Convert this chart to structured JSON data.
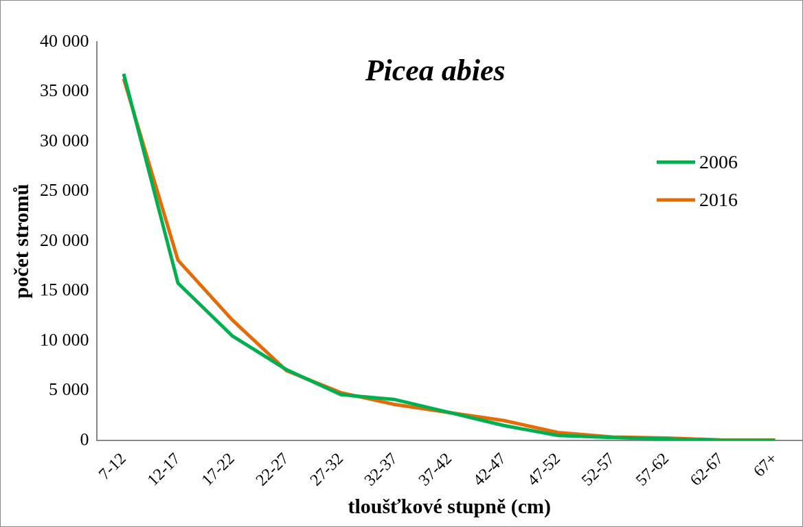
{
  "chart_data": {
    "type": "line",
    "title": "Picea abies",
    "xlabel": "tloušťkové stupně (cm)",
    "ylabel": "počet stromů",
    "categories": [
      "7-12",
      "12-17",
      "17-22",
      "22-27",
      "27-32",
      "32-37",
      "37-42",
      "42-47",
      "47-52",
      "52-57",
      "57-62",
      "62-67",
      "67+"
    ],
    "series": [
      {
        "name": "2006",
        "color": "#00b050",
        "values": [
          36800,
          15800,
          10500,
          7100,
          4600,
          4100,
          2800,
          1500,
          500,
          300,
          150,
          0,
          0
        ]
      },
      {
        "name": "2016",
        "color": "#e36c09",
        "values": [
          36300,
          18100,
          12100,
          7000,
          4800,
          3600,
          2800,
          2000,
          800,
          350,
          250,
          50,
          30
        ]
      }
    ],
    "ylim": [
      0,
      40000
    ],
    "yticks": [
      {
        "value": 0,
        "label": "0"
      },
      {
        "value": 5000,
        "label": "5 000"
      },
      {
        "value": 10000,
        "label": "10 000"
      },
      {
        "value": 15000,
        "label": "15 000"
      },
      {
        "value": 20000,
        "label": "20 000"
      },
      {
        "value": 25000,
        "label": "25 000"
      },
      {
        "value": 30000,
        "label": "30 000"
      },
      {
        "value": 35000,
        "label": "35 000"
      },
      {
        "value": 40000,
        "label": "40 000"
      }
    ],
    "grid": false,
    "legend": "right",
    "marker": "none",
    "line_style": "solid"
  }
}
